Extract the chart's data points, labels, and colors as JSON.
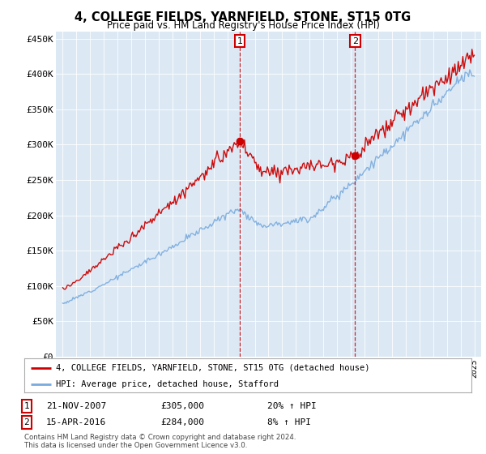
{
  "title": "4, COLLEGE FIELDS, YARNFIELD, STONE, ST15 0TG",
  "subtitle": "Price paid vs. HM Land Registry's House Price Index (HPI)",
  "plot_bg_color": "#dce9f5",
  "ylim": [
    0,
    460000
  ],
  "yticks": [
    0,
    50000,
    100000,
    150000,
    200000,
    250000,
    300000,
    350000,
    400000,
    450000
  ],
  "ytick_labels": [
    "£0",
    "£50K",
    "£100K",
    "£150K",
    "£200K",
    "£250K",
    "£300K",
    "£350K",
    "£400K",
    "£450K"
  ],
  "sale1_date_str": "21-NOV-2007",
  "sale1_price": 305000,
  "sale1_hpi_pct": "20%",
  "sale1_label": "1",
  "sale1_x": 2007.9,
  "sale2_date_str": "15-APR-2016",
  "sale2_price": 284000,
  "sale2_hpi_pct": "8%",
  "sale2_label": "2",
  "sale2_x": 2016.3,
  "line1_label": "4, COLLEGE FIELDS, YARNFIELD, STONE, ST15 0TG (detached house)",
  "line2_label": "HPI: Average price, detached house, Stafford",
  "line1_color": "#cc0000",
  "line2_color": "#7aaadd",
  "vline_color": "#cc0000",
  "footnote": "Contains HM Land Registry data © Crown copyright and database right 2024.\nThis data is licensed under the Open Government Licence v3.0.",
  "xmin": 1994.5,
  "xmax": 2025.5
}
